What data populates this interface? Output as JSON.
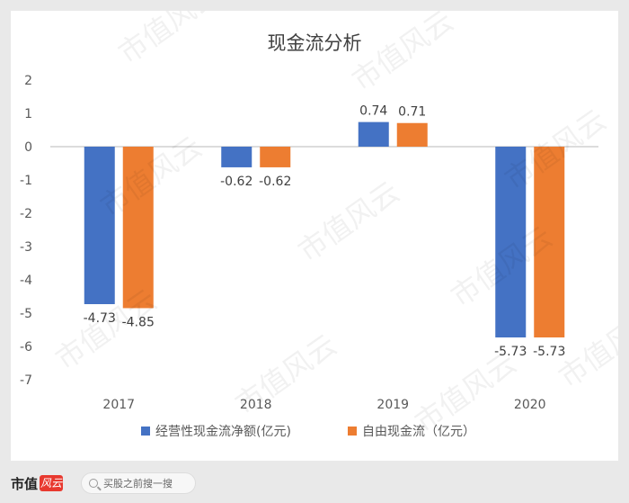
{
  "chart_data": {
    "type": "bar",
    "title": "现金流分析",
    "categories": [
      "2017",
      "2018",
      "2019",
      "2020"
    ],
    "series": [
      {
        "name": "经营性现金流净额(亿元)",
        "color": "#4472c4",
        "values": [
          -4.73,
          -0.62,
          0.74,
          -5.73
        ],
        "labels": [
          "-4.73",
          "-0.62",
          "0.74",
          "-5.73"
        ]
      },
      {
        "name": "自由现金流（亿元）",
        "color": "#ed7d31",
        "values": [
          -4.85,
          -0.62,
          0.71,
          -5.73
        ],
        "labels": [
          "-4.85",
          "-0.62",
          "0.71",
          "-5.73"
        ]
      }
    ],
    "yticks": [
      "2",
      "1",
      "0",
      "-1",
      "-2",
      "-3",
      "-4",
      "-5",
      "-6",
      "-7"
    ],
    "ylim": [
      -7,
      2
    ],
    "grid": false,
    "legend": "bottom"
  },
  "watermark": "市值风云",
  "footer": {
    "brand": "市值",
    "brand_seal": "风云",
    "search_icon": "search-icon",
    "search_text": "买股之前搜一搜"
  }
}
